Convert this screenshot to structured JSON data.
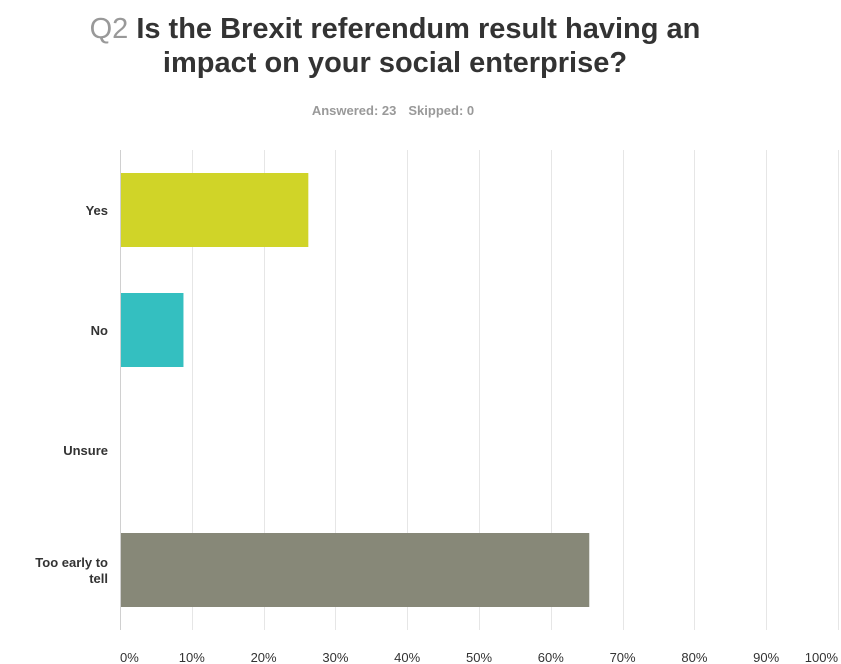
{
  "question": {
    "number": "Q2",
    "line1": "Is the Brexit referendum result having an",
    "line2": "impact on your social enterprise?"
  },
  "summary": {
    "answered": "Answered: 23",
    "skipped": "Skipped: 0"
  },
  "colors": {
    "yes": "#d0d428",
    "no": "#34bfc0",
    "unsure": "#f0b530",
    "too_early": "#878878",
    "grid": "#e6e6e6",
    "axis_text": "#333333"
  },
  "chart_data": {
    "type": "bar",
    "orientation": "horizontal",
    "categories": [
      "Yes",
      "No",
      "Unsure",
      "Too early to tell"
    ],
    "values": [
      26.09,
      8.7,
      0,
      65.22
    ],
    "unit": "%",
    "xlim": [
      0,
      100
    ],
    "ticks": [
      "0%",
      "10%",
      "20%",
      "30%",
      "40%",
      "50%",
      "60%",
      "70%",
      "80%",
      "90%",
      "100%"
    ],
    "grid": true,
    "legend": "none"
  }
}
